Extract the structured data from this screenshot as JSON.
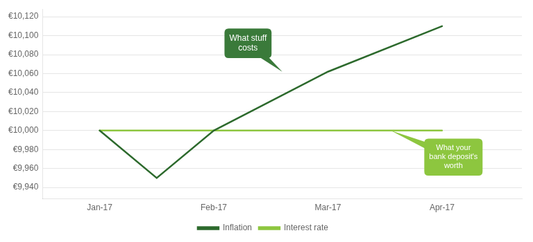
{
  "chart_data": {
    "type": "line",
    "series": [
      {
        "name": "Inflation",
        "color": "#2d6a2d",
        "x": [
          1,
          1.5,
          2,
          3,
          4
        ],
        "values": [
          10000,
          9950,
          10000,
          10062,
          10110
        ]
      },
      {
        "name": "Interest rate",
        "color": "#8dc63f",
        "x": [
          1,
          2,
          3,
          4
        ],
        "values": [
          10000,
          10000,
          10000,
          10000
        ]
      }
    ],
    "xlim": [
      0.5,
      4.7
    ],
    "xticks": [
      {
        "value": 1,
        "label": "Jan-17"
      },
      {
        "value": 2,
        "label": "Feb-17"
      },
      {
        "value": 3,
        "label": "Mar-17"
      },
      {
        "value": 4,
        "label": "Apr-17"
      }
    ],
    "ylim": [
      9928,
      10128
    ],
    "yticks": [
      {
        "value": 9940,
        "label": "€9,940"
      },
      {
        "value": 9960,
        "label": "€9,960"
      },
      {
        "value": 9980,
        "label": "€9,980"
      },
      {
        "value": 10000,
        "label": "€10,000"
      },
      {
        "value": 10020,
        "label": "€10,020"
      },
      {
        "value": 10040,
        "label": "€10,040"
      },
      {
        "value": 10060,
        "label": "€10,060"
      },
      {
        "value": 10080,
        "label": "€10,080"
      },
      {
        "value": 10100,
        "label": "€10,100"
      },
      {
        "value": 10120,
        "label": "€10,120"
      }
    ],
    "grid": "y",
    "legend": "bottom",
    "annotations": [
      {
        "text": "What stuff\ncosts",
        "x": 2.3,
        "y": 10092,
        "point_x": 2.6,
        "point_y": 10062,
        "color": "#3a7a3a"
      },
      {
        "text": "What your\nbank deposit's\nworth",
        "x": 4.1,
        "y": 9972,
        "point_x": 3.55,
        "point_y": 10000,
        "color": "#8dc63f"
      }
    ]
  }
}
